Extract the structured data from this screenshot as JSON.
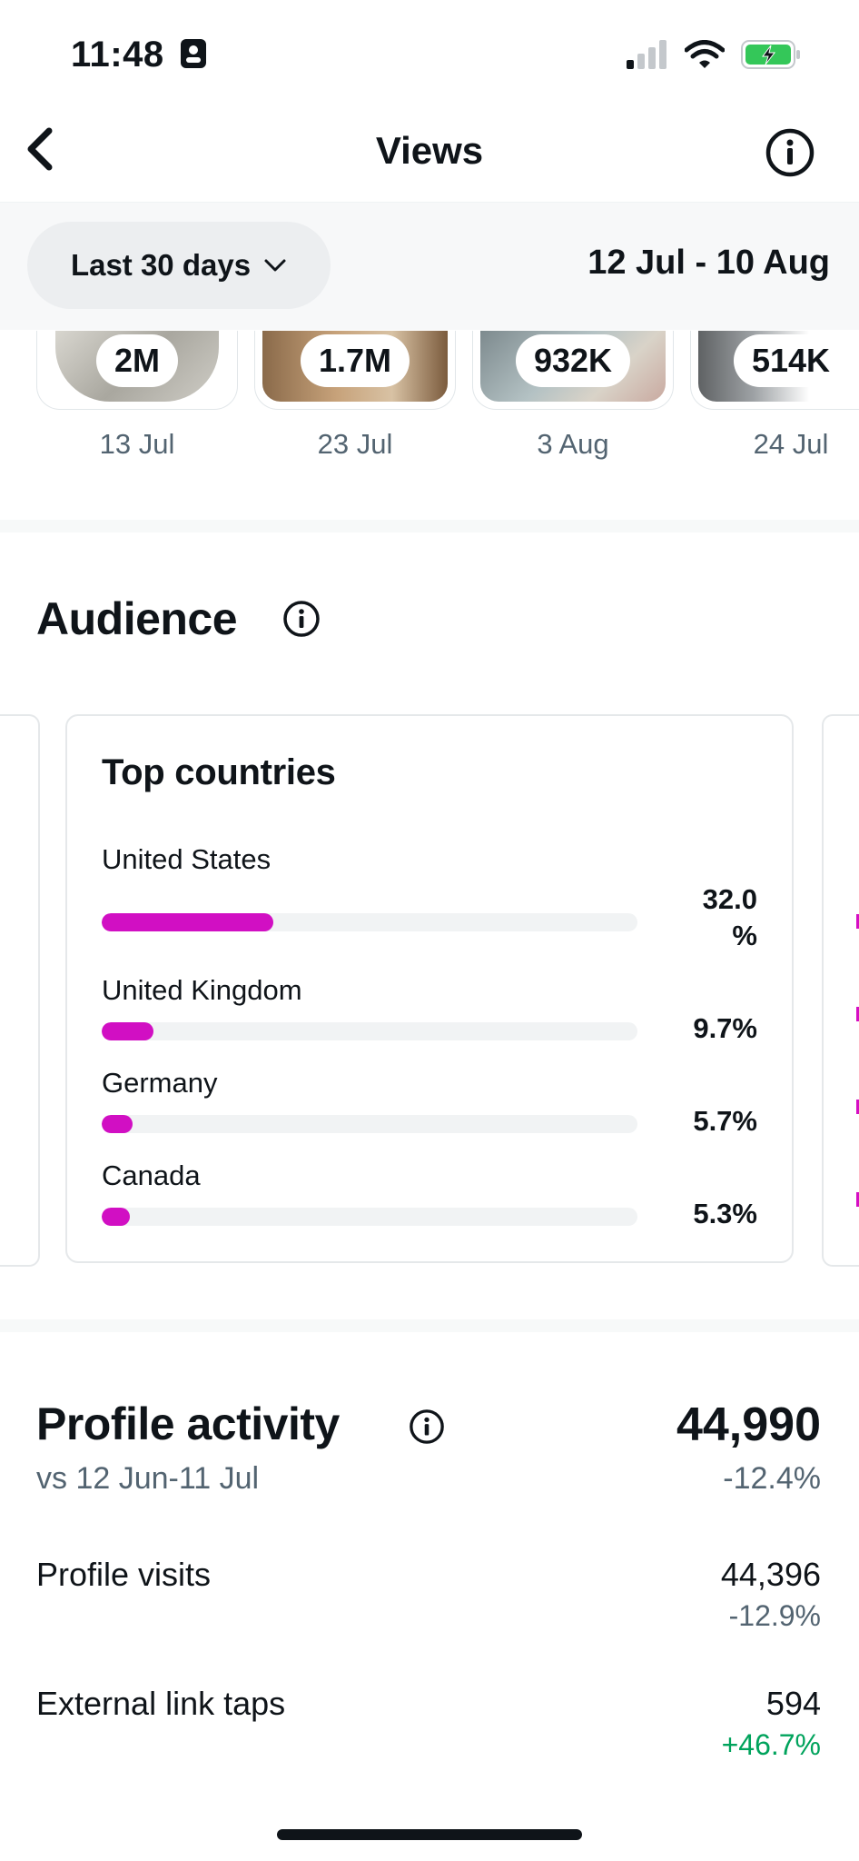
{
  "status_bar": {
    "time": "11:48"
  },
  "header": {
    "title": "Views"
  },
  "filter": {
    "range_label": "Last 30 days",
    "date_range": "12 Jul - 10 Aug"
  },
  "top_posts": [
    {
      "views": "2M",
      "date": "13 Jul"
    },
    {
      "views": "1.7M",
      "date": "23 Jul"
    },
    {
      "views": "932K",
      "date": "3 Aug"
    },
    {
      "views": "514K",
      "date": "24 Jul"
    }
  ],
  "audience": {
    "title": "Audience",
    "top_countries": {
      "title": "Top countries",
      "accent_color": "#d10fc3",
      "items": [
        {
          "name": "United States",
          "percent": "32.0",
          "percent_unit": "%",
          "value": 32.0
        },
        {
          "name": "United Kingdom",
          "percent": "9.7%",
          "value": 9.7
        },
        {
          "name": "Germany",
          "percent": "5.7%",
          "value": 5.7
        },
        {
          "name": "Canada",
          "percent": "5.3%",
          "value": 5.3
        }
      ]
    }
  },
  "profile_activity": {
    "title": "Profile activity",
    "total": "44,990",
    "comparison": "vs 12 Jun-11 Jul",
    "change": "-12.4%",
    "rows": [
      {
        "label": "Profile visits",
        "value": "44,396",
        "change": "-12.9%",
        "trend": "negative"
      },
      {
        "label": "External link taps",
        "value": "594",
        "change": "+46.7%",
        "trend": "positive"
      }
    ]
  },
  "colors": {
    "positive": "#00a35c",
    "muted": "#536471",
    "accent": "#d10fc3"
  },
  "icons": [
    "back-chevron-icon",
    "info-icon",
    "chevron-down-icon",
    "signal-icon",
    "wifi-icon",
    "battery-charging-icon",
    "id-badge-icon"
  ]
}
